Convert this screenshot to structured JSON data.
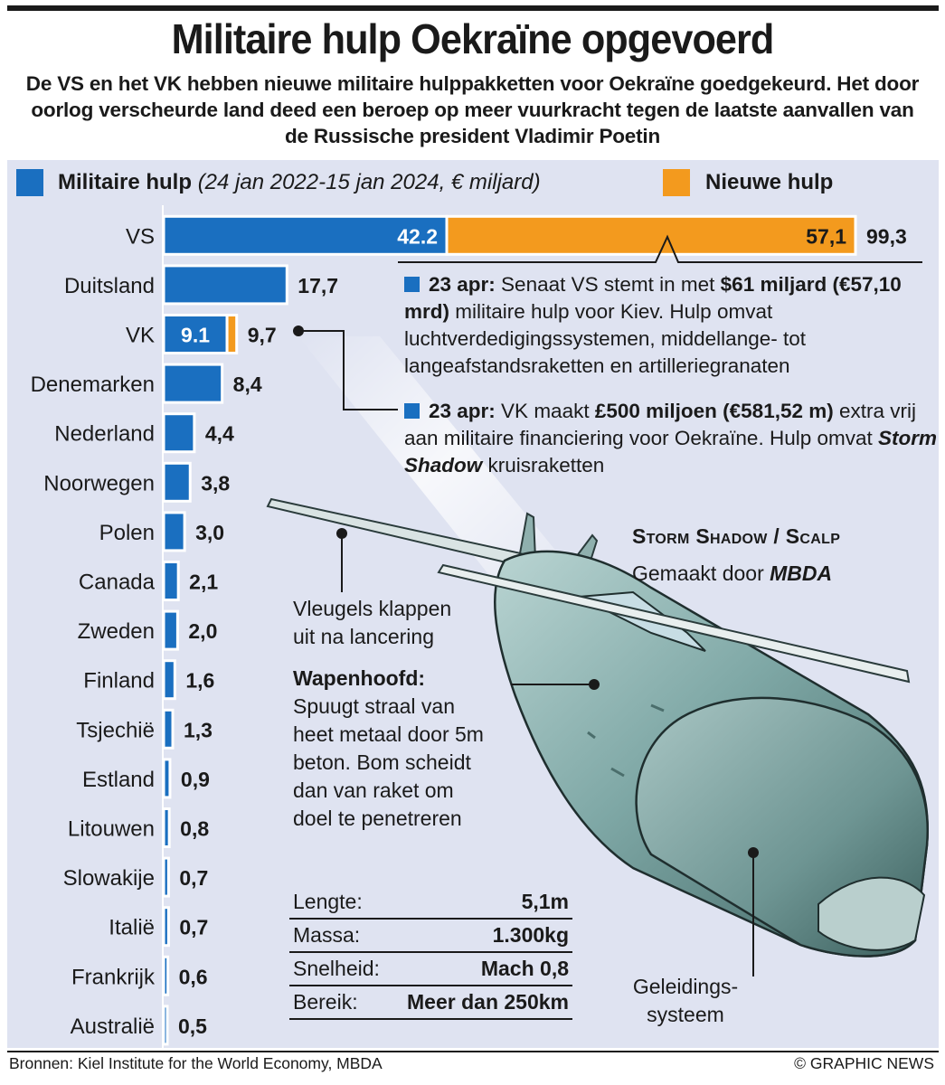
{
  "header": {
    "title": "Militaire hulp Oekraïne opgevoerd",
    "subtitle": "De VS en het VK hebben nieuwe militaire hulppakketten voor Oekraïne goedgekeurd. Het door oorlog verscheurde land deed een beroep op meer vuurkracht tegen de laatste aanvallen van de Russische president Vladimir Poetin"
  },
  "legend": {
    "existing_label": "Militaire hulp",
    "existing_note": "(24 jan 2022-15 jan 2024, € miljard)",
    "new_label": "Nieuwe hulp"
  },
  "colors": {
    "existing": "#1a6fc0",
    "new": "#f39a1e",
    "panel": "#dfe3f1"
  },
  "chart_data": {
    "type": "bar",
    "orientation": "horizontal",
    "stacked": true,
    "categories": [
      "VS",
      "Duitsland",
      "VK",
      "Denemarken",
      "Nederland",
      "Noorwegen",
      "Polen",
      "Canada",
      "Zweden",
      "Finland",
      "Tsjechië",
      "Estland",
      "Litouwen",
      "Slowakije",
      "Italië",
      "Frankrijk",
      "Australië"
    ],
    "series": [
      {
        "name": "Militaire hulp",
        "values": [
          42.2,
          17.7,
          9.1,
          8.4,
          4.4,
          3.8,
          3.0,
          2.1,
          2.0,
          1.6,
          1.3,
          0.9,
          0.8,
          0.7,
          0.7,
          0.6,
          0.5
        ]
      },
      {
        "name": "Nieuwe hulp",
        "values": [
          57.1,
          0,
          0.6,
          0,
          0,
          0,
          0,
          0,
          0,
          0,
          0,
          0,
          0,
          0,
          0,
          0,
          0
        ]
      }
    ],
    "inner_labels": {
      "VS": [
        "42.2",
        "57,1"
      ],
      "VK": [
        "9.1",
        ""
      ]
    },
    "total_labels": [
      "99,3",
      "17,7",
      "9,7",
      "8,4",
      "4,4",
      "3,8",
      "3,0",
      "2,1",
      "2,0",
      "1,6",
      "1,3",
      "0,9",
      "0,8",
      "0,7",
      "0,7",
      "0,6",
      "0,5"
    ],
    "axis_break_on": "VS"
  },
  "annotations": [
    {
      "date": "23 apr:",
      "parts": [
        {
          "t": " Senaat VS stemt in met ",
          "b": false
        },
        {
          "t": "$61 miljard (€57,10 mrd)",
          "b": true
        },
        {
          "t": " militaire hulp voor Kiev. Hulp omvat luchtverdedigingssystemen, middellange- tot langeafstandsraketten en artillerie­granaten",
          "b": false
        }
      ]
    },
    {
      "date": "23 apr:",
      "parts": [
        {
          "t": " VK maakt ",
          "b": false
        },
        {
          "t": "£500 miljoen (€581,52 m)",
          "b": true
        },
        {
          "t": " extra vrij aan militaire financiering voor Oekraïne. Hulp omvat ",
          "b": false
        },
        {
          "t": "Storm Shadow",
          "b": true,
          "i": true
        },
        {
          "t": " kruisraketten",
          "b": false
        }
      ]
    }
  ],
  "missile": {
    "title": "Storm Shadow / Scalp",
    "made_by_prefix": "Gemaakt door ",
    "made_by": "MBDA",
    "wings_note": "Vleugels klappen uit na lancering",
    "warhead_title": "Wapenhoofd:",
    "warhead_text": "Spuugt straal van heet metaal door 5m beton. Bom scheidt dan van raket om doel te penetreren",
    "guidance": "Geleidings-systeem",
    "specs": [
      {
        "label": "Lengte:",
        "value": "5,1m"
      },
      {
        "label": "Massa:",
        "value": "1.300kg"
      },
      {
        "label": "Snelheid:",
        "value": "Mach 0,8"
      },
      {
        "label": "Bereik:",
        "value": "Meer dan 250km"
      }
    ]
  },
  "footer": {
    "source": "Bronnen: Kiel Institute for the World Economy, MBDA",
    "credit": "© GRAPHIC NEWS"
  }
}
